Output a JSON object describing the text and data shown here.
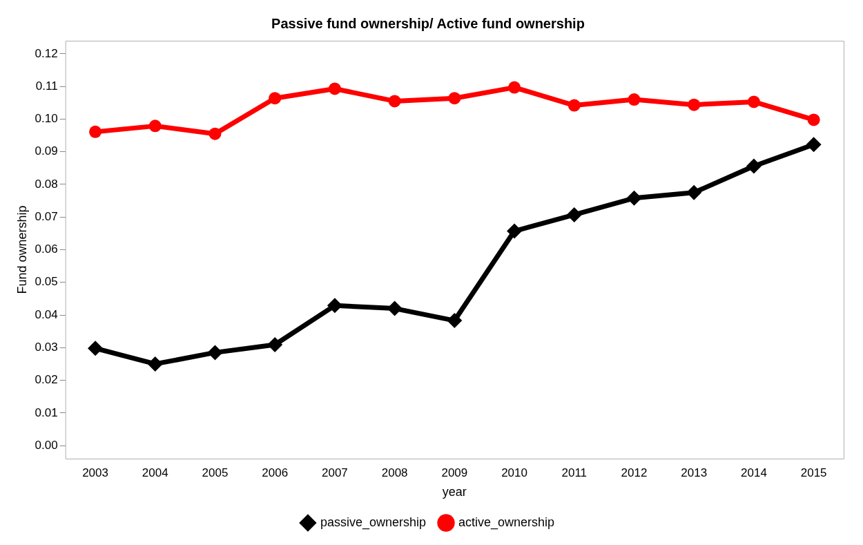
{
  "chart_data": {
    "type": "line",
    "title": "Passive fund ownership/ Active fund ownership",
    "xlabel": "year",
    "ylabel": "Fund ownership",
    "categories": [
      "2003",
      "2004",
      "2005",
      "2006",
      "2007",
      "2008",
      "2009",
      "2010",
      "2011",
      "2012",
      "2013",
      "2014",
      "2015"
    ],
    "series": [
      {
        "name": "passive_ownership",
        "color": "#000000",
        "marker": "diamond",
        "values": [
          0.0298,
          0.025,
          0.0285,
          0.0309,
          0.0429,
          0.042,
          0.0383,
          0.0657,
          0.0707,
          0.0758,
          0.0775,
          0.0856,
          0.0922
        ]
      },
      {
        "name": "active_ownership",
        "color": "#ff0000",
        "marker": "circle",
        "values": [
          0.0961,
          0.0979,
          0.0955,
          0.1064,
          0.1093,
          0.1055,
          0.1064,
          0.1097,
          0.1042,
          0.106,
          0.1044,
          0.1053,
          0.0998
        ]
      }
    ],
    "ylim": [
      -0.004,
      0.124
    ],
    "yticks": [
      {
        "value": 0,
        "label": "0.00"
      },
      {
        "value": 0.01,
        "label": "0.01"
      },
      {
        "value": 0.02,
        "label": "0.02"
      },
      {
        "value": 0.03,
        "label": "0.03"
      },
      {
        "value": 0.04,
        "label": "0.04"
      },
      {
        "value": 0.05,
        "label": "0.05"
      },
      {
        "value": 0.06,
        "label": "0.06"
      },
      {
        "value": 0.07,
        "label": "0.07"
      },
      {
        "value": 0.08,
        "label": "0.08"
      },
      {
        "value": 0.09,
        "label": "0.09"
      },
      {
        "value": 0.1,
        "label": "0.10"
      },
      {
        "value": 0.11,
        "label": "0.11"
      },
      {
        "value": 0.12,
        "label": "0.12"
      }
    ],
    "grid": false,
    "legend": "bottom",
    "line_style": "solid"
  }
}
